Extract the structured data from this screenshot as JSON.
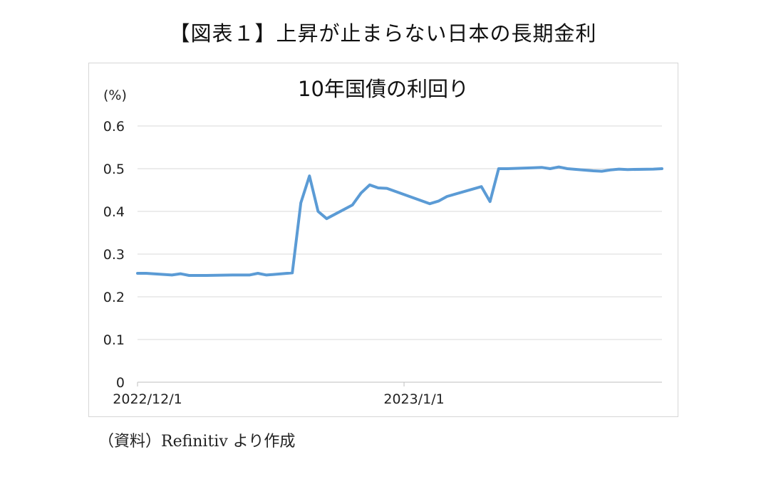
{
  "figure_title": "【図表１】上昇が止まらない日本の長期金利",
  "source_note": "（資料）Refinitiv より作成",
  "colors": {
    "series": "#5b9bd5",
    "grid": "#d9d9d9",
    "frame": "#d6d6d6"
  },
  "chart_data": {
    "type": "line",
    "title": "10年国債の利回り",
    "ylabel": "(%)",
    "xlabel": "",
    "ylim": [
      0,
      0.6
    ],
    "yticks": [
      0,
      0.1,
      0.2,
      0.3,
      0.4,
      0.5,
      0.6
    ],
    "ytick_labels": [
      "0",
      "0.1",
      "0.2",
      "0.3",
      "0.4",
      "0.5",
      "0.6"
    ],
    "x_range": [
      "2022-12-01",
      "2023-01-31"
    ],
    "xticks": [
      "2022-12-01",
      "2023-01-01"
    ],
    "xtick_labels": [
      "2022/12/1",
      "2023/1/1"
    ],
    "grid": true,
    "legend": "none",
    "x": [
      "2022-12-01",
      "2022-12-02",
      "2022-12-05",
      "2022-12-06",
      "2022-12-07",
      "2022-12-08",
      "2022-12-09",
      "2022-12-12",
      "2022-12-13",
      "2022-12-14",
      "2022-12-15",
      "2022-12-16",
      "2022-12-19",
      "2022-12-20",
      "2022-12-21",
      "2022-12-22",
      "2022-12-23",
      "2022-12-26",
      "2022-12-27",
      "2022-12-28",
      "2022-12-29",
      "2022-12-30",
      "2023-01-04",
      "2023-01-05",
      "2023-01-06",
      "2023-01-10",
      "2023-01-11",
      "2023-01-12",
      "2023-01-13",
      "2023-01-16",
      "2023-01-17",
      "2023-01-18",
      "2023-01-19",
      "2023-01-20",
      "2023-01-23",
      "2023-01-24",
      "2023-01-25",
      "2023-01-26",
      "2023-01-27",
      "2023-01-30",
      "2023-01-31"
    ],
    "series": [
      {
        "values": [
          0.255,
          0.255,
          0.251,
          0.254,
          0.25,
          0.25,
          0.25,
          0.251,
          0.251,
          0.251,
          0.255,
          0.251,
          0.256,
          0.42,
          0.483,
          0.4,
          0.383,
          0.415,
          0.443,
          0.462,
          0.455,
          0.454,
          0.418,
          0.424,
          0.435,
          0.458,
          0.423,
          0.5,
          0.5,
          0.502,
          0.503,
          0.5,
          0.504,
          0.5,
          0.495,
          0.494,
          0.497,
          0.499,
          0.498,
          0.499,
          0.5
        ]
      }
    ]
  }
}
